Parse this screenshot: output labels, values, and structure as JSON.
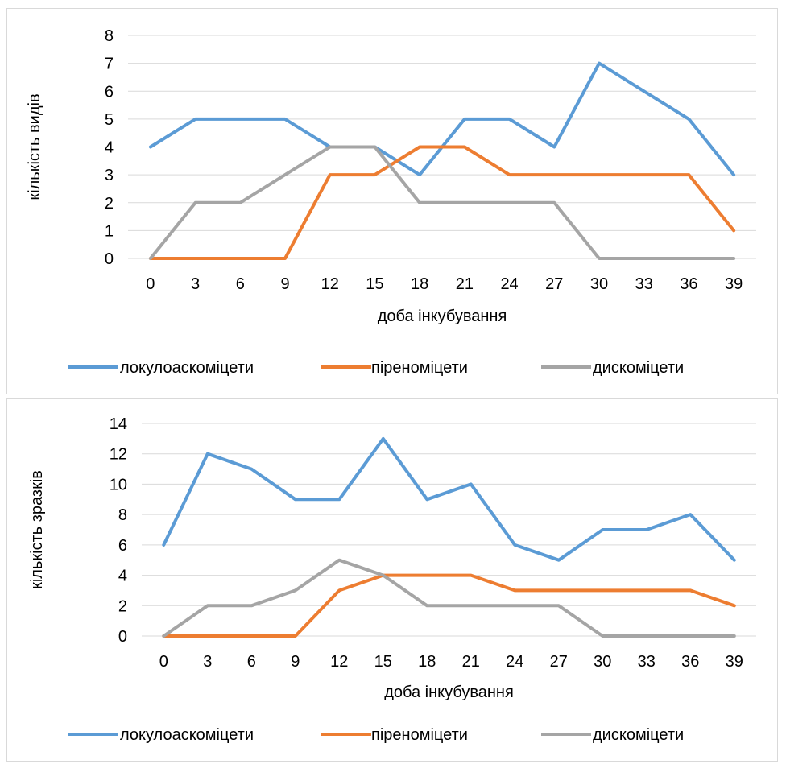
{
  "chart_data": [
    {
      "type": "line",
      "title": "",
      "xlabel": "доба інкубування",
      "ylabel": "кількість видів",
      "categories": [
        "0",
        "3",
        "6",
        "9",
        "12",
        "15",
        "18",
        "21",
        "24",
        "27",
        "30",
        "33",
        "36",
        "39"
      ],
      "ylim": [
        0,
        8
      ],
      "yticks": [
        "0",
        "1",
        "2",
        "3",
        "4",
        "5",
        "6",
        "7",
        "8"
      ],
      "grid": true,
      "legend": "bottom",
      "series": [
        {
          "name": "локулоаскоміцети",
          "color": "#5b9bd5",
          "values": [
            4,
            5,
            5,
            5,
            4,
            4,
            3,
            5,
            5,
            4,
            7,
            6,
            5,
            3
          ]
        },
        {
          "name": "піреноміцети",
          "color": "#ed7d31",
          "values": [
            0,
            0,
            0,
            0,
            3,
            3,
            4,
            4,
            3,
            3,
            3,
            3,
            3,
            1
          ]
        },
        {
          "name": "дискоміцети",
          "color": "#a5a5a5",
          "values": [
            0,
            2,
            2,
            3,
            4,
            4,
            2,
            2,
            2,
            2,
            0,
            0,
            0,
            0
          ]
        }
      ]
    },
    {
      "type": "line",
      "title": "",
      "xlabel": "доба інкубування",
      "ylabel": "кількість зразків",
      "categories": [
        "0",
        "3",
        "6",
        "9",
        "12",
        "15",
        "18",
        "21",
        "24",
        "27",
        "30",
        "33",
        "36",
        "39"
      ],
      "ylim": [
        0,
        14
      ],
      "yticks": [
        "0",
        "2",
        "4",
        "6",
        "8",
        "10",
        "12",
        "14"
      ],
      "grid": true,
      "legend": "bottom",
      "series": [
        {
          "name": "локулоаскоміцети",
          "color": "#5b9bd5",
          "values": [
            6,
            12,
            11,
            9,
            9,
            13,
            9,
            10,
            6,
            5,
            7,
            7,
            8,
            5
          ]
        },
        {
          "name": "піреноміцети",
          "color": "#ed7d31",
          "values": [
            0,
            0,
            0,
            0,
            3,
            4,
            4,
            4,
            3,
            3,
            3,
            3,
            3,
            2
          ]
        },
        {
          "name": "дискоміцети",
          "color": "#a5a5a5",
          "values": [
            0,
            2,
            2,
            3,
            5,
            4,
            2,
            2,
            2,
            2,
            0,
            0,
            0,
            0
          ]
        }
      ]
    }
  ]
}
